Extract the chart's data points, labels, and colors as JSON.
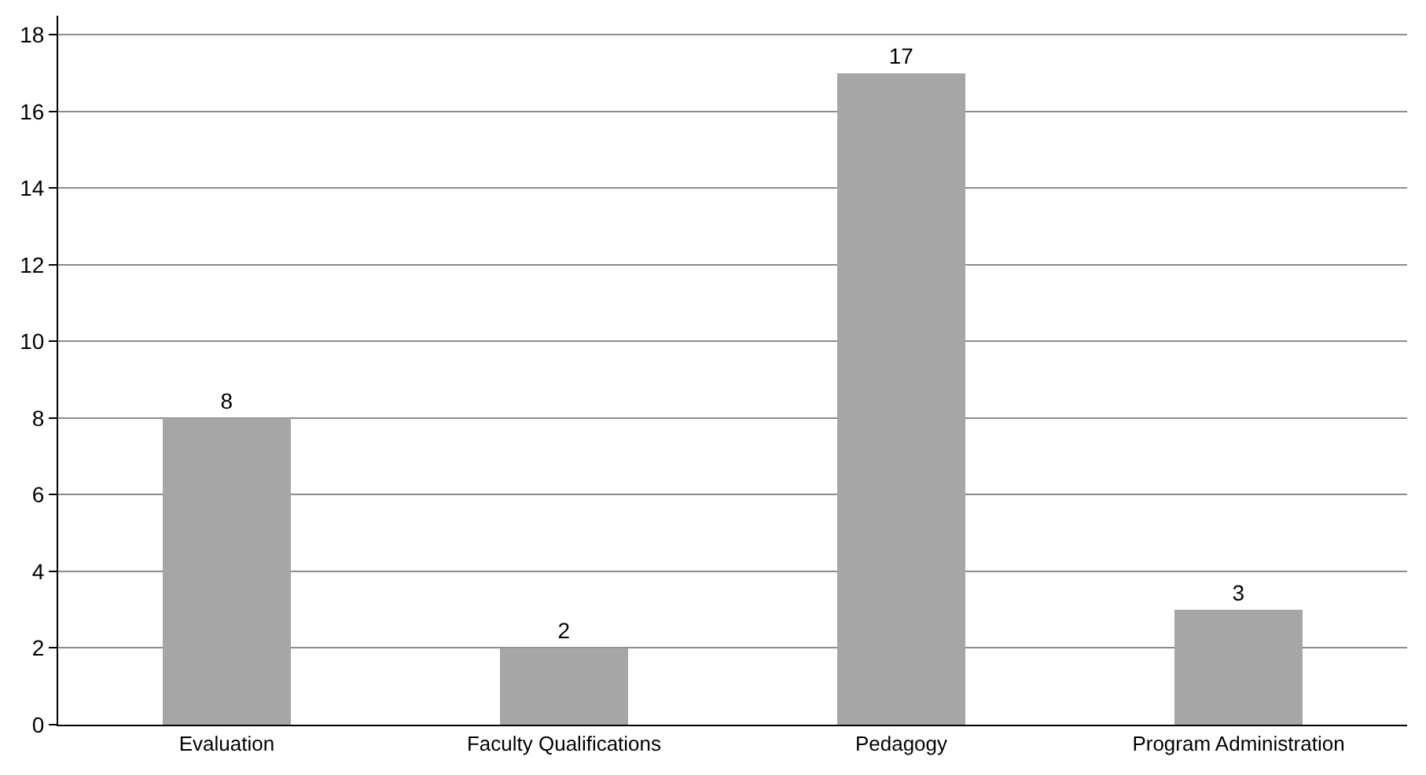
{
  "chart_data": {
    "type": "bar",
    "categories": [
      "Evaluation",
      "Faculty Qualifications",
      "Pedagogy",
      "Program Administration"
    ],
    "values": [
      8,
      2,
      17,
      3
    ],
    "color": "#a6a6a6",
    "ylim": [
      0,
      18.5
    ],
    "yticks": [
      0,
      2,
      4,
      6,
      8,
      10,
      12,
      14,
      16,
      18
    ],
    "grid": "y",
    "data_labels": true,
    "legend": false
  }
}
